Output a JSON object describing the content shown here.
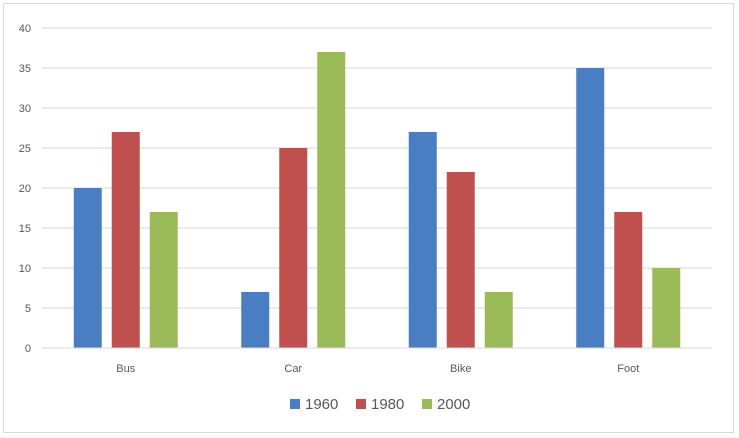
{
  "chart_data": {
    "type": "bar",
    "categories": [
      "Bus",
      "Car",
      "Bike",
      "Foot"
    ],
    "series": [
      {
        "name": "1960",
        "values": [
          20,
          7,
          27,
          35
        ],
        "color": "#4a7ec3"
      },
      {
        "name": "1980",
        "values": [
          27,
          25,
          22,
          17
        ],
        "color": "#c0504d"
      },
      {
        "name": "2000",
        "values": [
          17,
          37,
          7,
          10
        ],
        "color": "#9bbb59"
      }
    ],
    "title": "",
    "xlabel": "",
    "ylabel": "",
    "ylim": [
      0,
      40
    ],
    "yticks": [
      0,
      5,
      10,
      15,
      20,
      25,
      30,
      35,
      40
    ],
    "grid": true,
    "legend": "bottom"
  }
}
